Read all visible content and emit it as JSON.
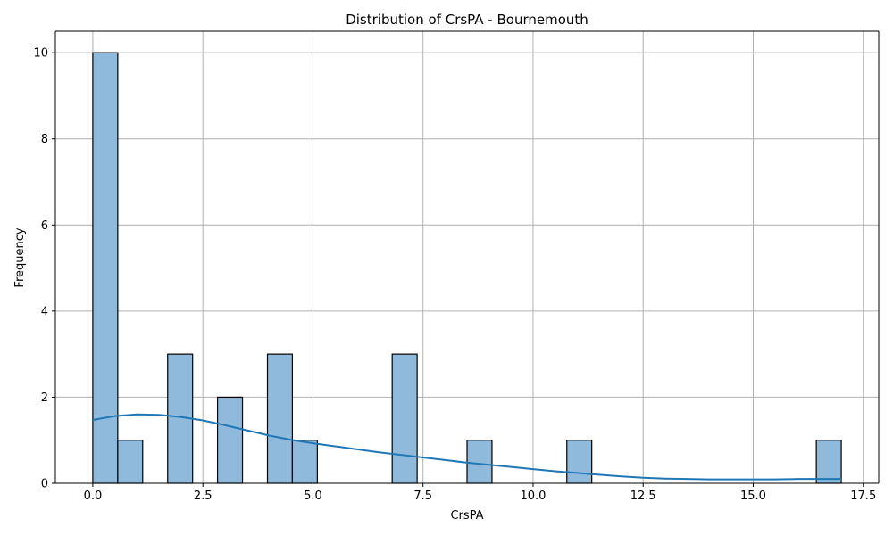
{
  "chart_data": {
    "type": "bar",
    "title": "Distribution of CrsPA - Bournemouth",
    "xlabel": "CrsPA",
    "ylabel": "Frequency",
    "xlim": [
      -0.85,
      17.85
    ],
    "ylim": [
      0,
      10.5
    ],
    "xticks": [
      0.0,
      2.5,
      5.0,
      7.5,
      10.0,
      12.5,
      15.0,
      17.5
    ],
    "xtick_labels": [
      "0.0",
      "2.5",
      "5.0",
      "7.5",
      "10.0",
      "12.5",
      "15.0",
      "17.5"
    ],
    "yticks": [
      0,
      2,
      4,
      6,
      8,
      10
    ],
    "ytick_labels": [
      "0",
      "2",
      "4",
      "6",
      "8",
      "10"
    ],
    "grid": true,
    "histogram": {
      "bin_start": 0,
      "bin_width": 0.5667,
      "bins": [
        {
          "start": 0.0,
          "end": 0.567,
          "count": 10
        },
        {
          "start": 0.567,
          "end": 1.133,
          "count": 1
        },
        {
          "start": 1.7,
          "end": 2.267,
          "count": 3
        },
        {
          "start": 2.833,
          "end": 3.4,
          "count": 2
        },
        {
          "start": 3.967,
          "end": 4.533,
          "count": 3
        },
        {
          "start": 4.533,
          "end": 5.1,
          "count": 1
        },
        {
          "start": 6.8,
          "end": 7.367,
          "count": 3
        },
        {
          "start": 8.5,
          "end": 9.067,
          "count": 1
        },
        {
          "start": 10.767,
          "end": 11.333,
          "count": 1
        },
        {
          "start": 16.433,
          "end": 17.0,
          "count": 1
        }
      ]
    },
    "kde": {
      "x": [
        0,
        0.5,
        1.0,
        1.5,
        2.0,
        2.5,
        3.0,
        3.5,
        4.0,
        4.5,
        5.0,
        5.5,
        6.0,
        6.5,
        7.0,
        7.5,
        8.0,
        8.5,
        9.0,
        9.5,
        10.0,
        10.5,
        11.0,
        11.5,
        12.0,
        12.5,
        13.0,
        13.5,
        14.0,
        14.5,
        15.0,
        15.5,
        16.0,
        16.5,
        17.0
      ],
      "y": [
        1.47,
        1.56,
        1.6,
        1.59,
        1.54,
        1.46,
        1.35,
        1.23,
        1.11,
        1.01,
        0.93,
        0.86,
        0.79,
        0.72,
        0.66,
        0.6,
        0.54,
        0.48,
        0.43,
        0.38,
        0.33,
        0.28,
        0.24,
        0.2,
        0.16,
        0.13,
        0.11,
        0.1,
        0.09,
        0.09,
        0.09,
        0.09,
        0.1,
        0.1,
        0.1
      ]
    },
    "colors": {
      "bar_fill": "#8fbadc",
      "bar_edge": "#000000",
      "kde_line": "#1f77b4",
      "grid": "#b0b0b0"
    }
  }
}
